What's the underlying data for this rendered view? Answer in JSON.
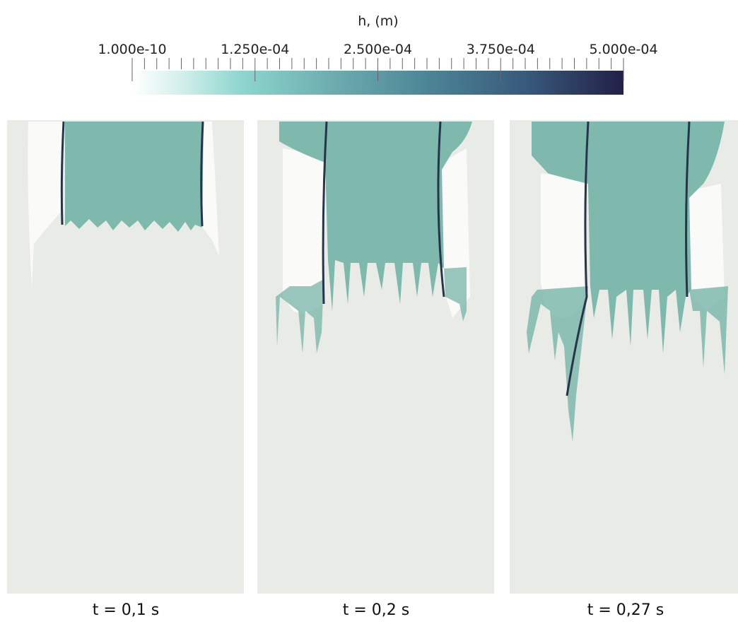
{
  "colorbar": {
    "title": "h, (m)",
    "ticks": [
      "1.000e-10",
      "1.250e-04",
      "2.500e-04",
      "3.750e-04",
      "5.000e-04"
    ]
  },
  "panels": [
    {
      "caption": "t = 0,1 s"
    },
    {
      "caption": "t = 0,2 s"
    },
    {
      "caption": "t = 0,27 s"
    }
  ]
}
